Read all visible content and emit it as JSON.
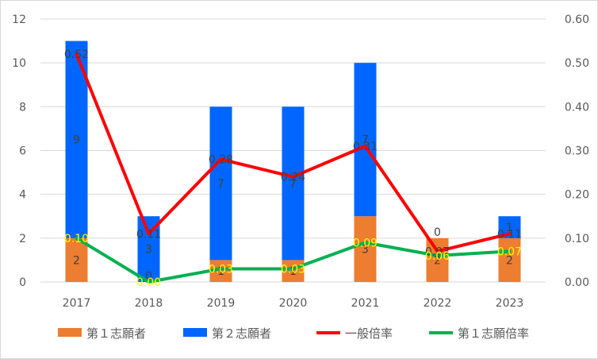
{
  "chart_data": {
    "type": "bar",
    "categories": [
      "2017",
      "2018",
      "2019",
      "2020",
      "2021",
      "2022",
      "2023"
    ],
    "y_left": {
      "min": 0,
      "max": 12,
      "ticks": [
        "0",
        "2",
        "4",
        "6",
        "8",
        "10",
        "12"
      ]
    },
    "y_right": {
      "min": 0,
      "max": 0.6,
      "ticks": [
        "0.00",
        "0.10",
        "0.20",
        "0.30",
        "0.40",
        "0.50",
        "0.60"
      ]
    },
    "grid": true,
    "legend_position": "bottom",
    "series": [
      {
        "name": "第１志願者",
        "kind": "bar",
        "stack": "s",
        "axis": "left",
        "color": "#ed7d31",
        "values": [
          2,
          0,
          1,
          1,
          3,
          2,
          2
        ],
        "labels": [
          "2",
          "0",
          "1",
          "1",
          "3",
          "2",
          "2"
        ],
        "label_color": "#404040"
      },
      {
        "name": "第２志願者",
        "kind": "bar",
        "stack": "s",
        "axis": "left",
        "color": "#0066ff",
        "values": [
          9,
          3,
          7,
          7,
          7,
          0,
          1
        ],
        "labels": [
          "9",
          "3",
          "7",
          "7",
          "7",
          "0",
          "1"
        ],
        "label_color": "#404040"
      },
      {
        "name": "一般倍率",
        "kind": "line",
        "axis": "right",
        "color": "#ff0000",
        "values": [
          0.52,
          0.11,
          0.28,
          0.24,
          0.31,
          0.07,
          0.11
        ],
        "labels": [
          "0.52",
          "0.11",
          "0.28",
          "0.24",
          "0.31",
          "0.07",
          "0.11"
        ],
        "label_color": "#404040"
      },
      {
        "name": "第１志願倍率",
        "kind": "line",
        "axis": "right",
        "color": "#00b050",
        "values": [
          0.1,
          0.0,
          0.03,
          0.03,
          0.09,
          0.06,
          0.07
        ],
        "labels": [
          "0.10",
          "0.00",
          "0.03",
          "0.03",
          "0.09",
          "0.06",
          "0.07"
        ],
        "label_color": "#ffff00"
      }
    ]
  }
}
